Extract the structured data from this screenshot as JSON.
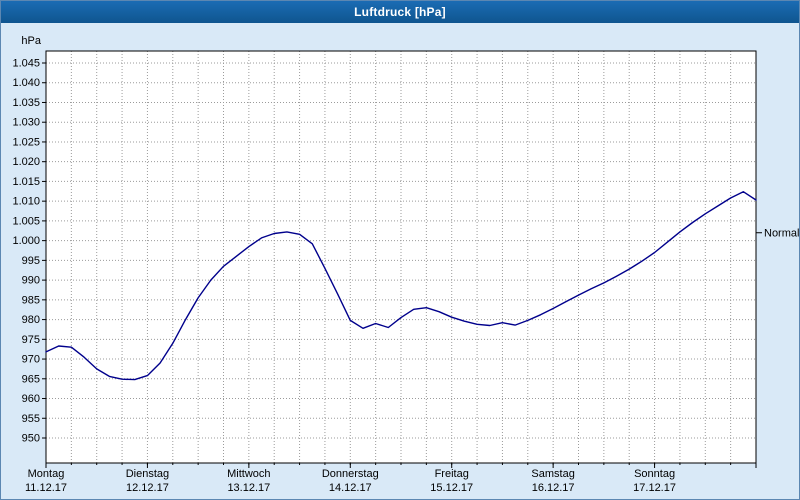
{
  "window": {
    "title": "Luftdruck [hPa]"
  },
  "colors": {
    "titlebar_bg": "#145f9f",
    "titlebar_text": "#ffffff",
    "window_bg": "#d9e9f7",
    "plot_bg": "#ffffff",
    "grid": "#9b9b9b",
    "axis": "#000000",
    "line": "#00008c",
    "text": "#000000"
  },
  "chart_data": {
    "type": "line",
    "title": "Luftdruck [hPa]",
    "y_unit": "hPa",
    "ylim": [
      950,
      1045
    ],
    "y_ticks": [
      1045,
      1040,
      1035,
      1030,
      1025,
      1020,
      1015,
      1010,
      1005,
      1000,
      995,
      990,
      985,
      980,
      975,
      970,
      965,
      960,
      955,
      950
    ],
    "y_tick_labels": [
      "1.045",
      "1.040",
      "1.035",
      "1.030",
      "1.025",
      "1.020",
      "1.015",
      "1.010",
      "1.005",
      "1.000",
      "995",
      "990",
      "985",
      "980",
      "975",
      "970",
      "965",
      "960",
      "955",
      "950"
    ],
    "x_days": [
      {
        "name": "Montag",
        "date": "11.12.17"
      },
      {
        "name": "Dienstag",
        "date": "12.12.17"
      },
      {
        "name": "Mittwoch",
        "date": "13.12.17"
      },
      {
        "name": "Donnerstag",
        "date": "14.12.17"
      },
      {
        "name": "Freitag",
        "date": "15.12.17"
      },
      {
        "name": "Samstag",
        "date": "16.12.17"
      },
      {
        "name": "Sonntag",
        "date": "17.12.17"
      }
    ],
    "hours_total": 168,
    "sample_interval_h": 3,
    "grid_minor_h": 6,
    "values": [
      971.8,
      973.3,
      973.0,
      970.5,
      967.5,
      965.6,
      964.9,
      964.8,
      965.8,
      969.0,
      974.0,
      980.0,
      985.5,
      990.0,
      993.5,
      996.0,
      998.5,
      1000.7,
      1001.8,
      1002.2,
      1001.6,
      999.2,
      993.0,
      986.5,
      979.8,
      977.8,
      979.0,
      978.0,
      980.5,
      982.6,
      983.0,
      982.0,
      980.6,
      979.6,
      978.8,
      978.5,
      979.2,
      978.6,
      979.8,
      981.2,
      982.8,
      984.5,
      986.2,
      987.8,
      989.3,
      991.0,
      992.8,
      994.8,
      997.0,
      999.6,
      1002.2,
      1004.6,
      1006.8,
      1008.8,
      1010.8,
      1012.4,
      1010.3
    ],
    "normal_label": "Normal",
    "normal_level": 1002,
    "legend_position": "right",
    "grid": "dotted"
  }
}
